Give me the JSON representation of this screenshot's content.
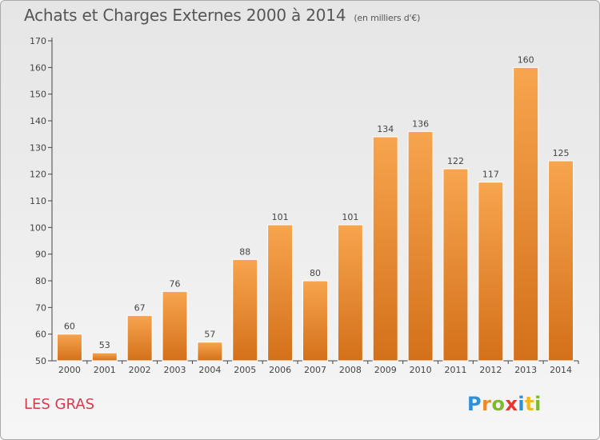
{
  "header": {
    "title": "Achats et Charges Externes 2000 à 2014",
    "unit": "(en milliers d'€)"
  },
  "footer": {
    "location": "LES GRAS",
    "logo": {
      "letters": [
        "P",
        "r",
        "o",
        "x",
        "i",
        "t",
        "i"
      ],
      "colors": [
        "#2f8fd8",
        "#f08a1c",
        "#7cbc2a",
        "#e8352e",
        "#2f8fd8",
        "#f2b81d",
        "#7cbc2a"
      ]
    }
  },
  "chart_data": {
    "type": "bar",
    "categories": [
      "2000",
      "2001",
      "2002",
      "2003",
      "2004",
      "2005",
      "2006",
      "2007",
      "2008",
      "2009",
      "2010",
      "2011",
      "2012",
      "2013",
      "2014"
    ],
    "values": [
      60,
      53,
      67,
      76,
      57,
      88,
      101,
      80,
      101,
      134,
      136,
      122,
      117,
      160,
      125
    ],
    "ylim": [
      50,
      170
    ],
    "yticks": [
      50,
      60,
      70,
      80,
      90,
      100,
      110,
      120,
      130,
      140,
      150,
      160,
      170
    ],
    "grid": false,
    "bar_colors": {
      "light": "#f7a54e",
      "dark": "#d4701a"
    }
  }
}
